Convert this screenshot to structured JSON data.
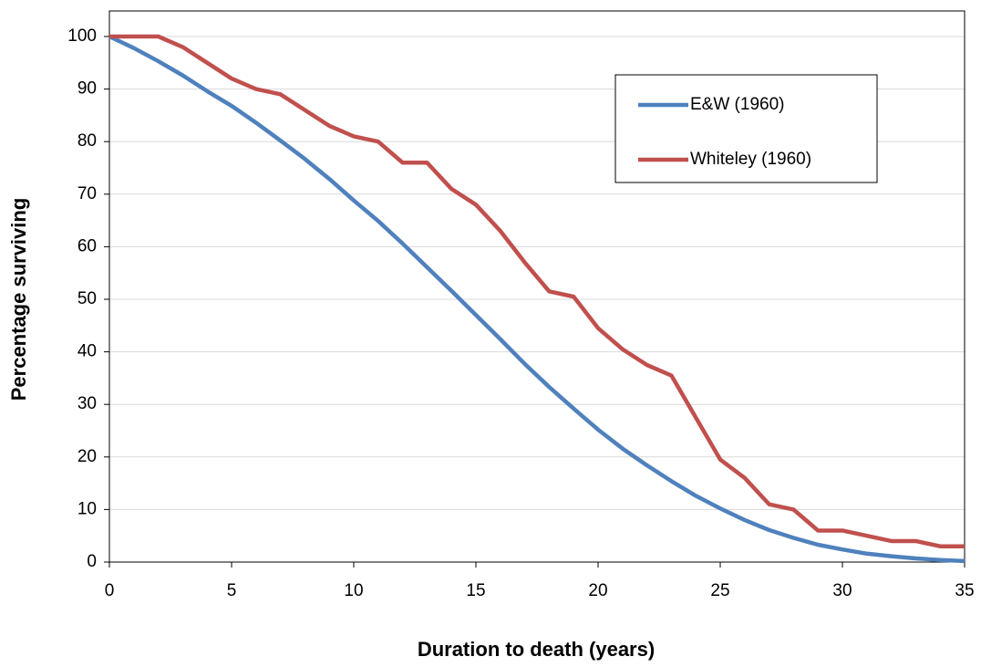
{
  "chart_data": {
    "type": "line",
    "x_label": "Duration to death (years)",
    "y_label": "Percentage  surviving",
    "x": [
      0,
      1,
      2,
      3,
      4,
      5,
      6,
      7,
      8,
      9,
      10,
      11,
      12,
      13,
      14,
      15,
      16,
      17,
      18,
      19,
      20,
      21,
      22,
      23,
      24,
      25,
      26,
      27,
      28,
      29,
      30,
      31,
      32,
      33,
      34,
      35
    ],
    "series": [
      {
        "name": "E&W (1960)",
        "color": "#4f81bd",
        "values": [
          100,
          97.8,
          95.3,
          92.6,
          89.6,
          86.8,
          83.6,
          80.2,
          76.7,
          72.9,
          68.8,
          64.9,
          60.6,
          56.1,
          51.6,
          47.0,
          42.4,
          37.7,
          33.3,
          29.2,
          25.2,
          21.6,
          18.4,
          15.4,
          12.6,
          10.2,
          8.0,
          6.1,
          4.6,
          3.3,
          2.4,
          1.6,
          1.1,
          0.7,
          0.4,
          0.2
        ]
      },
      {
        "name": "Whiteley (1960)",
        "color": "#c0504d",
        "values": [
          100,
          100,
          100,
          98,
          95,
          92,
          90,
          89,
          86,
          83,
          81,
          80,
          76,
          76,
          71,
          68,
          63,
          57,
          51.5,
          50.5,
          44.5,
          40.5,
          37.5,
          35.5,
          27.5,
          19.5,
          16,
          11,
          10,
          6,
          6,
          5,
          4,
          4,
          3,
          3
        ]
      }
    ],
    "xlim": [
      0,
      35
    ],
    "xticks": [
      0,
      5,
      10,
      15,
      20,
      25,
      30,
      35
    ],
    "ylim": [
      0,
      100
    ],
    "yticks": [
      0,
      10,
      20,
      30,
      40,
      50,
      60,
      70,
      80,
      90,
      100
    ],
    "grid": true,
    "legend": "upper right"
  }
}
